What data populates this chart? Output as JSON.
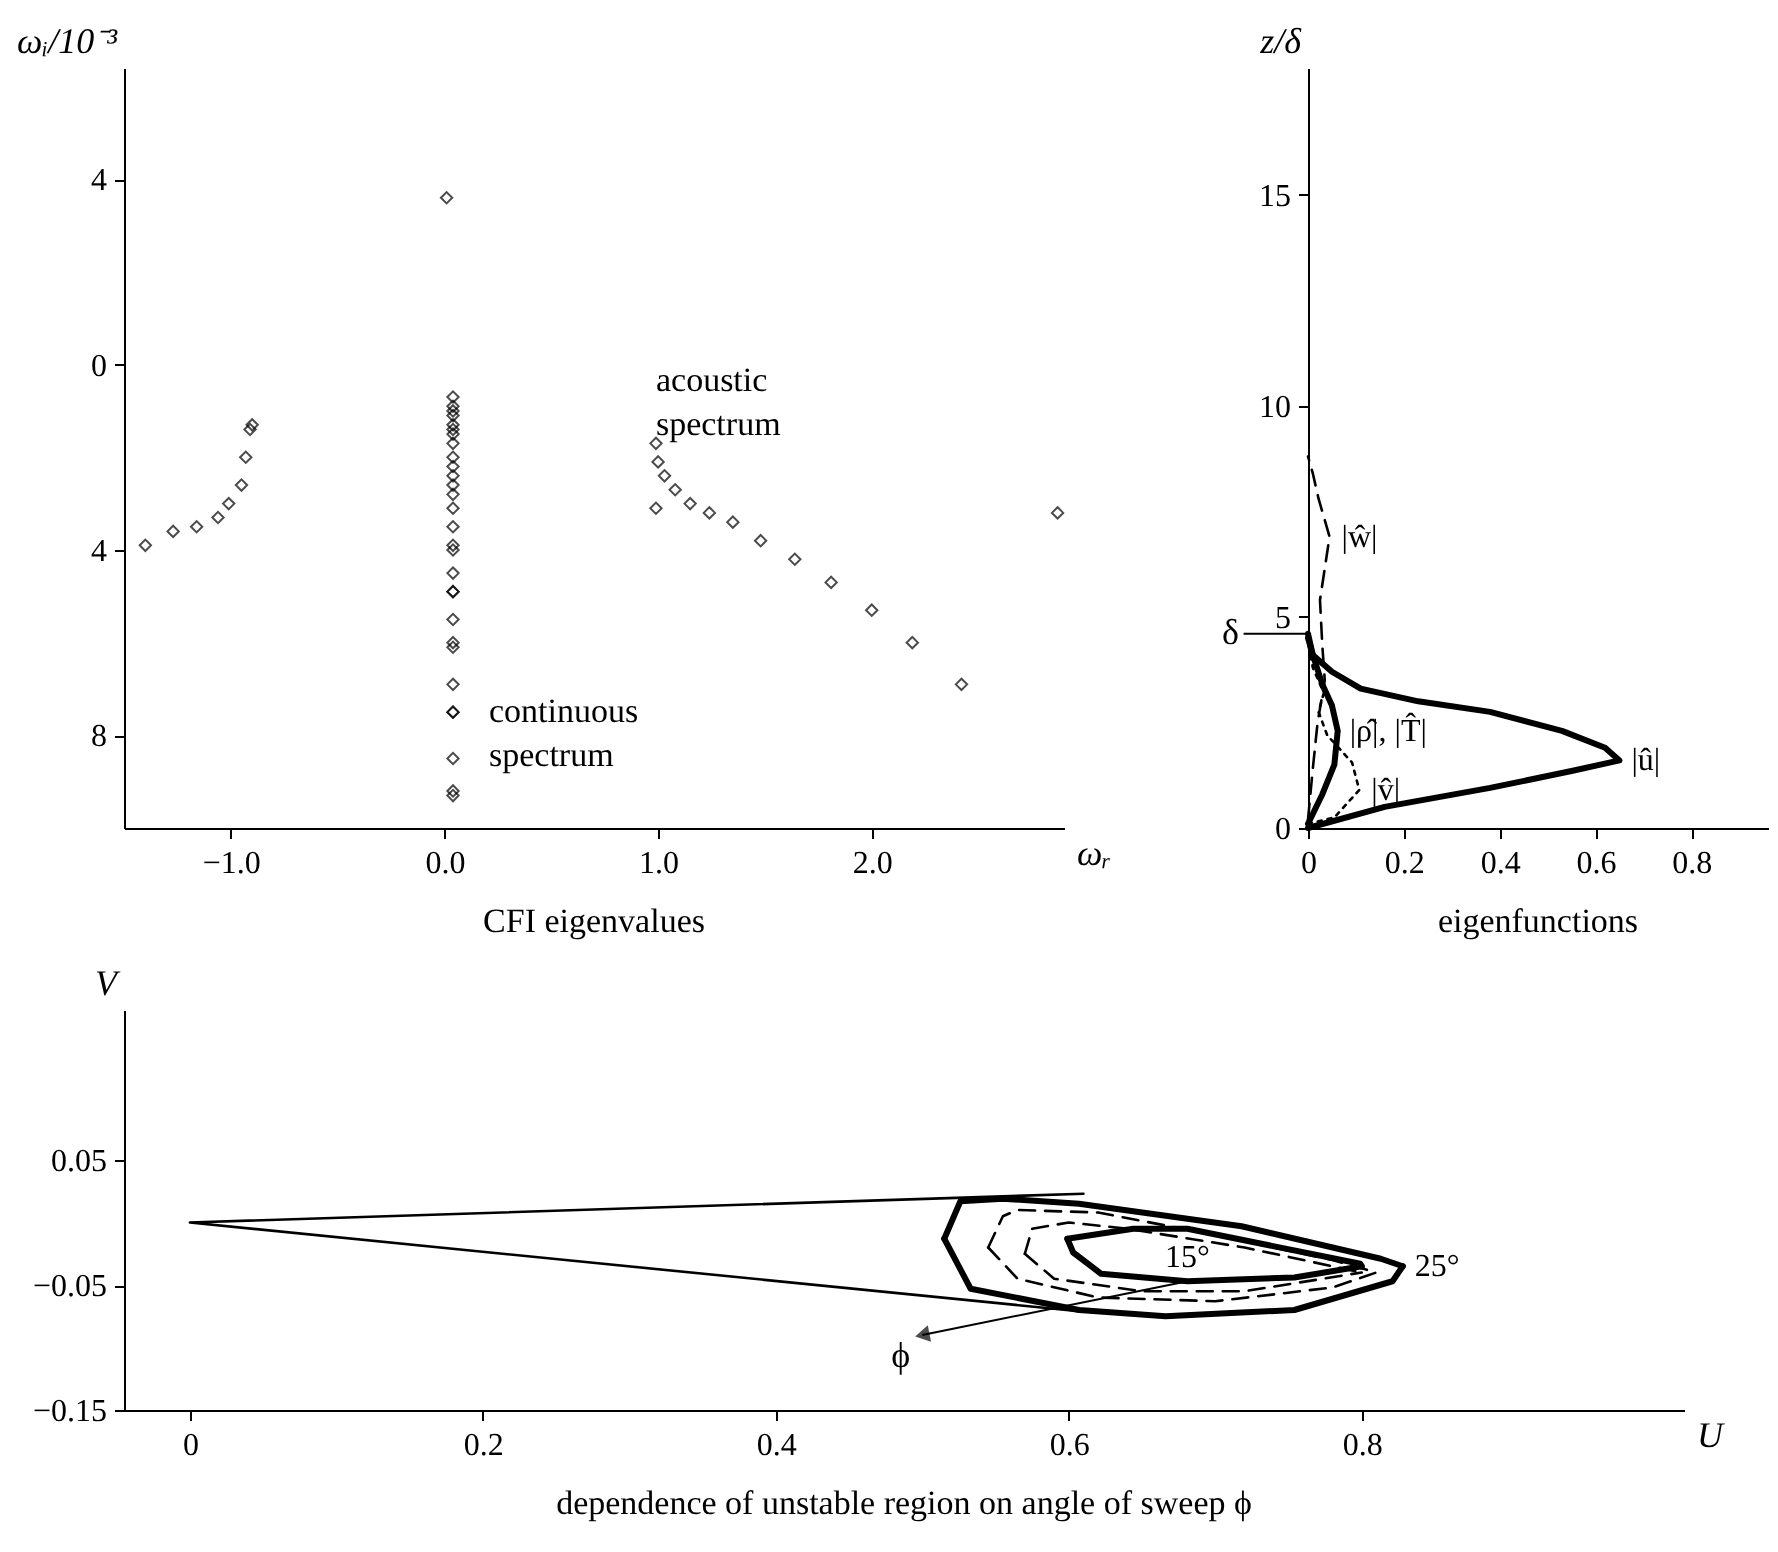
{
  "chart_data": [
    {
      "type": "scatter",
      "title": "CFI eigenvalues",
      "xlabel": "ωᵣ",
      "ylabel": "ωᵢ/10⁻³",
      "marker": "diamond",
      "color": "#000000",
      "xlim": [
        -1.5,
        2.9
      ],
      "xticks": [
        {
          "value": -1,
          "label": "−1.0"
        },
        {
          "value": 0,
          "label": "0.0"
        },
        {
          "value": 1,
          "label": "1.0"
        },
        {
          "value": 2,
          "label": "2.0"
        }
      ],
      "ylim": [
        -10,
        6.4
      ],
      "yticks": [
        {
          "value": -8,
          "label": "8"
        },
        {
          "value": -4,
          "label": "4"
        },
        0,
        4
      ],
      "x": [
        0.01,
        -1.4,
        -1.27,
        -1.16,
        -1.06,
        -1.01,
        -0.95,
        -0.93,
        -0.91,
        -0.9,
        0.04,
        0.04,
        0.04,
        0.04,
        0.04,
        0.04,
        0.04,
        0.04,
        0.04,
        0.04,
        0.04,
        0.04,
        0.04,
        0.04,
        0.04,
        0.04,
        0.04,
        0.04,
        0.04,
        0.04,
        0.04,
        0.04,
        0.04,
        0.04,
        0.04,
        0.04,
        0.04,
        0.04,
        0.04,
        0.99,
        1.0,
        1.03,
        1.08,
        1.15,
        1.24,
        1.35,
        1.48,
        1.64,
        1.81,
        2.0,
        2.19,
        2.42,
        0.99,
        2.87
      ],
      "values": [
        3.6,
        -3.9,
        -3.6,
        -3.5,
        -3.3,
        -3.0,
        -2.6,
        -2.0,
        -1.4,
        -1.3,
        -0.7,
        -0.9,
        -1.0,
        -1.1,
        -1.3,
        -1.4,
        -1.5,
        -1.7,
        -2.0,
        -2.2,
        -2.4,
        -2.6,
        -2.8,
        -3.1,
        -3.5,
        -3.9,
        -4.0,
        -4.5,
        -4.9,
        -4.9,
        -5.5,
        -6.0,
        -6.1,
        -6.9,
        -7.5,
        -7.5,
        -8.5,
        -9.2,
        -9.3,
        -1.7,
        -2.1,
        -2.4,
        -2.7,
        -3.0,
        -3.2,
        -3.4,
        -3.8,
        -4.2,
        -4.7,
        -5.3,
        -6.0,
        -6.9,
        -3.1,
        -3.2
      ],
      "annotations": [
        {
          "text": "acoustic spectrum",
          "x": 0.99,
          "y": -1.7
        },
        {
          "text": "continuous spectrum",
          "x": 0.04,
          "y": -7.5
        }
      ]
    },
    {
      "type": "line",
      "title": "eigenfunctions",
      "ylabel": "z/δ",
      "xlim": [
        0,
        0.96
      ],
      "xticks": [
        0,
        0.2,
        0.4,
        0.6,
        0.8
      ],
      "ylim": [
        0,
        18
      ],
      "yticks": [
        0,
        5,
        10,
        15
      ],
      "series": [
        {
          "name": "|û|",
          "color": "#000000",
          "line_style": "solid",
          "x": [
            0,
            0.16,
            0.38,
            0.55,
            0.65,
            0.62,
            0.53,
            0.38,
            0.23,
            0.11,
            0.05,
            0.01,
            0
          ],
          "values": [
            0,
            0.5,
            0.95,
            1.35,
            1.6,
            1.9,
            2.3,
            2.75,
            3.0,
            3.3,
            3.7,
            4.1,
            4.5
          ]
        },
        {
          "name": "|ρ̂|, |T̂|",
          "color": "#000000",
          "line_style": "solid",
          "x": [
            0,
            0.03,
            0.055,
            0.062,
            0.05,
            0.03,
            0.01,
            0
          ],
          "values": [
            0.1,
            0.8,
            1.5,
            2.3,
            2.9,
            3.4,
            4.1,
            4.6
          ]
        },
        {
          "name": "|v̂|",
          "color": "#000000",
          "line_style": "dotted",
          "x": [
            0,
            0.055,
            0.107,
            0.092,
            0.04,
            0.022,
            0.033,
            0.01,
            0
          ],
          "values": [
            0.1,
            0.25,
            0.9,
            1.55,
            2.2,
            2.75,
            3.2,
            3.8,
            4.4
          ]
        },
        {
          "name": "|ŵ|",
          "color": "#000000",
          "line_style": "dashed",
          "x": [
            0,
            0.01,
            0.02,
            0.035,
            0.03,
            0.025,
            0.045,
            0.022,
            0.01,
            0
          ],
          "values": [
            0.2,
            1.4,
            2.5,
            3.5,
            4.3,
            5.4,
            6.9,
            7.8,
            8.4,
            8.8
          ]
        }
      ],
      "annotations": [
        {
          "text": "δ",
          "x": 0,
          "y": 4.6
        }
      ]
    },
    {
      "type": "line",
      "title": "dependence of unstable region on angle of sweep  ϕ",
      "xlabel": "U",
      "ylabel": "V",
      "xlim": [
        -0.045,
        1.02
      ],
      "xticks": [
        0,
        0.2,
        0.4,
        0.6,
        0.8
      ],
      "ylim": [
        -0.15,
        0.17
      ],
      "yticks": [
        {
          "value": -0.15,
          "label": "−0.15"
        },
        {
          "value": -0.05,
          "label": "−0.05"
        },
        0.05
      ],
      "series": [
        {
          "color": "#000000",
          "line_style": "solid",
          "x": [
            0.61,
            0,
            0.607
          ],
          "values": [
            0.023,
            0,
            -0.071
          ]
        },
        {
          "name": "25°",
          "color": "#000000",
          "line_style": "solid",
          "x": [
            0.515,
            0.526,
            0.555,
            0.607,
            0.718,
            0.813,
            0.828
          ],
          "values": [
            -0.013,
            0.017,
            0.019,
            0.015,
            -0.003,
            -0.029,
            -0.035
          ]
        },
        {
          "color": "#000000",
          "line_style": "solid",
          "x": [
            0.515,
            0.533,
            0.607,
            0.666,
            0.754,
            0.821,
            0.828
          ],
          "values": [
            -0.013,
            -0.053,
            -0.07,
            -0.075,
            -0.07,
            -0.047,
            -0.035
          ]
        },
        {
          "color": "#000000",
          "line_style": "dashed",
          "x": [
            0.545,
            0.555,
            0.565,
            0.62,
            0.7,
            0.78,
            0.81
          ],
          "values": [
            -0.02,
            0.005,
            0.01,
            0.008,
            -0.01,
            -0.03,
            -0.04
          ]
        },
        {
          "color": "#000000",
          "line_style": "dashed",
          "x": [
            0.545,
            0.565,
            0.62,
            0.7,
            0.78,
            0.81
          ],
          "values": [
            -0.02,
            -0.045,
            -0.06,
            -0.063,
            -0.052,
            -0.04
          ]
        },
        {
          "color": "#000000",
          "line_style": "dashed",
          "x": [
            0.57,
            0.575,
            0.6,
            0.64,
            0.72,
            0.8
          ],
          "values": [
            -0.025,
            -0.005,
            0.0,
            -0.005,
            -0.02,
            -0.04
          ]
        },
        {
          "color": "#000000",
          "line_style": "dashed",
          "x": [
            0.57,
            0.59,
            0.65,
            0.72,
            0.8
          ],
          "values": [
            -0.025,
            -0.045,
            -0.055,
            -0.055,
            -0.04
          ]
        },
        {
          "color": "#000000",
          "line_style": "solid",
          "x": [
            0.599,
            0.644,
            0.681,
            0.799,
            0.8
          ],
          "values": [
            -0.013,
            -0.005,
            -0.005,
            -0.033,
            -0.035
          ]
        },
        {
          "name": "15°",
          "color": "#000000",
          "line_style": "solid",
          "x": [
            0.599,
            0.603,
            0.622,
            0.681,
            0.754,
            0.8
          ],
          "values": [
            -0.013,
            -0.024,
            -0.041,
            -0.047,
            -0.044,
            -0.035
          ]
        }
      ],
      "annotations": [
        {
          "text": "ϕ",
          "x": 0.5,
          "y": -0.09
        }
      ]
    }
  ]
}
